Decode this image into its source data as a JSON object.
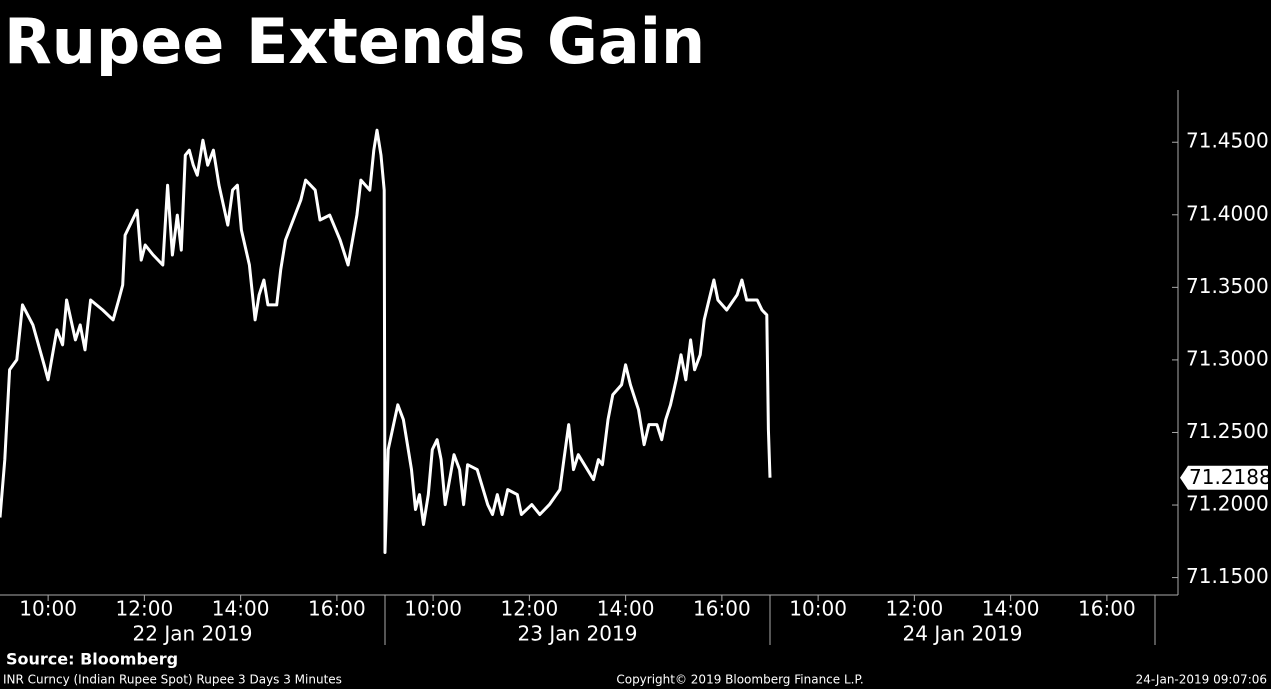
{
  "chart_data": {
    "type": "line",
    "title": "Rupee Extends Gain",
    "source": "Source: Bloomberg",
    "footnote": "INR Curncy (Indian Rupee Spot) Rupee 3 Days 3 Minutes",
    "copyright": "Copyright© 2019 Bloomberg Finance L.P.",
    "timestamp": "24-Jan-2019 09:07:06",
    "xlim": [
      "2019-01-22T09:00",
      "2019-01-24T17:00"
    ],
    "xticks": [
      {
        "value": "2019-01-22T10:00",
        "label": "10:00"
      },
      {
        "value": "2019-01-22T12:00",
        "label": "12:00"
      },
      {
        "value": "2019-01-22T14:00",
        "label": "14:00"
      },
      {
        "value": "2019-01-22T16:00",
        "label": "16:00"
      },
      {
        "value": "2019-01-23T10:00",
        "label": "10:00"
      },
      {
        "value": "2019-01-23T12:00",
        "label": "12:00"
      },
      {
        "value": "2019-01-23T14:00",
        "label": "14:00"
      },
      {
        "value": "2019-01-23T16:00",
        "label": "16:00"
      },
      {
        "value": "2019-01-24T10:00",
        "label": "10:00"
      },
      {
        "value": "2019-01-24T12:00",
        "label": "12:00"
      },
      {
        "value": "2019-01-24T14:00",
        "label": "14:00"
      },
      {
        "value": "2019-01-24T16:00",
        "label": "16:00"
      }
    ],
    "days": [
      {
        "value": "2019-01-22",
        "label": "22 Jan 2019"
      },
      {
        "value": "2019-01-23",
        "label": "23 Jan 2019"
      },
      {
        "value": "2019-01-24",
        "label": "24 Jan 2019"
      }
    ],
    "ylim": [
      71.138,
      71.486
    ],
    "yticks": [
      {
        "value": 71.15,
        "label": "71.1500"
      },
      {
        "value": 71.2,
        "label": "71.2000"
      },
      {
        "value": 71.25,
        "label": "71.2500"
      },
      {
        "value": 71.3,
        "label": "71.3000"
      },
      {
        "value": 71.35,
        "label": "71.3500"
      },
      {
        "value": 71.4,
        "label": "71.4000"
      },
      {
        "value": 71.45,
        "label": "71.4500"
      }
    ],
    "series": [
      {
        "color": "#ffffff",
        "x": [
          "2019-01-22T09:00",
          "2019-01-22T09:06",
          "2019-01-22T09:12",
          "2019-01-22T09:21",
          "2019-01-22T09:28",
          "2019-01-22T09:41",
          "2019-01-22T09:55",
          "2019-01-22T10:00",
          "2019-01-22T10:11",
          "2019-01-22T10:18",
          "2019-01-22T10:23",
          "2019-01-22T10:34",
          "2019-01-22T10:40",
          "2019-01-22T10:46",
          "2019-01-22T10:53",
          "2019-01-22T11:08",
          "2019-01-22T11:21",
          "2019-01-22T11:28",
          "2019-01-22T11:33",
          "2019-01-22T11:36",
          "2019-01-22T11:51",
          "2019-01-22T11:56",
          "2019-01-22T12:01",
          "2019-01-22T12:11",
          "2019-01-22T12:23",
          "2019-01-22T12:29",
          "2019-01-22T12:35",
          "2019-01-22T12:41",
          "2019-01-22T12:46",
          "2019-01-22T12:51",
          "2019-01-22T12:56",
          "2019-01-22T13:01",
          "2019-01-22T13:06",
          "2019-01-22T13:13",
          "2019-01-22T13:19",
          "2019-01-22T13:26",
          "2019-01-22T13:33",
          "2019-01-22T13:44",
          "2019-01-22T13:50",
          "2019-01-22T13:56",
          "2019-01-22T14:01",
          "2019-01-22T14:11",
          "2019-01-22T14:18",
          "2019-01-22T14:23",
          "2019-01-22T14:29",
          "2019-01-22T14:34",
          "2019-01-22T14:45",
          "2019-01-22T14:50",
          "2019-01-22T14:56",
          "2019-01-22T15:03",
          "2019-01-22T15:15",
          "2019-01-22T15:21",
          "2019-01-22T15:33",
          "2019-01-22T15:39",
          "2019-01-22T15:51",
          "2019-01-22T16:04",
          "2019-01-22T16:14",
          "2019-01-22T16:25",
          "2019-01-22T16:30",
          "2019-01-22T16:41",
          "2019-01-22T16:46",
          "2019-01-22T16:50",
          "2019-01-22T16:55",
          "2019-01-22T16:59",
          "2019-01-23T09:00",
          "2019-01-23T09:04",
          "2019-01-23T09:16",
          "2019-01-23T09:23",
          "2019-01-23T09:33",
          "2019-01-23T09:38",
          "2019-01-23T09:43",
          "2019-01-23T09:48",
          "2019-01-23T09:54",
          "2019-01-23T09:59",
          "2019-01-23T10:05",
          "2019-01-23T10:10",
          "2019-01-23T10:15",
          "2019-01-23T10:26",
          "2019-01-23T10:33",
          "2019-01-23T10:38",
          "2019-01-23T10:43",
          "2019-01-23T10:55",
          "2019-01-23T11:08",
          "2019-01-23T11:14",
          "2019-01-23T11:20",
          "2019-01-23T11:26",
          "2019-01-23T11:33",
          "2019-01-23T11:45",
          "2019-01-23T11:50",
          "2019-01-23T12:03",
          "2019-01-23T12:13",
          "2019-01-23T12:25",
          "2019-01-23T12:38",
          "2019-01-23T12:43",
          "2019-01-23T12:49",
          "2019-01-23T12:55",
          "2019-01-23T13:01",
          "2019-01-23T13:20",
          "2019-01-23T13:26",
          "2019-01-23T13:31",
          "2019-01-23T13:38",
          "2019-01-23T13:44",
          "2019-01-23T13:55",
          "2019-01-23T14:00",
          "2019-01-23T14:06",
          "2019-01-23T14:16",
          "2019-01-23T14:23",
          "2019-01-23T14:29",
          "2019-01-23T14:39",
          "2019-01-23T14:45",
          "2019-01-23T14:50",
          "2019-01-23T14:56",
          "2019-01-23T15:03",
          "2019-01-23T15:09",
          "2019-01-23T15:15",
          "2019-01-23T15:21",
          "2019-01-23T15:26",
          "2019-01-23T15:33",
          "2019-01-23T15:38",
          "2019-01-23T15:44",
          "2019-01-23T15:50",
          "2019-01-23T15:55",
          "2019-01-23T16:06",
          "2019-01-23T16:19",
          "2019-01-23T16:25",
          "2019-01-23T16:31",
          "2019-01-23T16:44",
          "2019-01-23T16:50",
          "2019-01-23T16:56",
          "2019-01-23T16:58",
          "2019-01-23T17:00"
        ],
        "values": [
          71.1914,
          71.2313,
          71.2932,
          71.3001,
          71.3379,
          71.3241,
          71.2966,
          71.2863,
          71.3207,
          71.3104,
          71.3413,
          71.3138,
          71.3241,
          71.3069,
          71.3413,
          71.3344,
          71.3276,
          71.3413,
          71.3516,
          71.386,
          71.4032,
          71.3688,
          71.3792,
          71.3723,
          71.3654,
          71.4204,
          71.3723,
          71.3998,
          71.3757,
          71.4411,
          71.4445,
          71.4342,
          71.4273,
          71.4514,
          71.4342,
          71.4445,
          71.4204,
          71.3929,
          71.417,
          71.4204,
          71.3895,
          71.3654,
          71.3276,
          71.3448,
          71.3551,
          71.3379,
          71.3379,
          71.362,
          71.3826,
          71.3929,
          71.4101,
          71.4239,
          71.417,
          71.3964,
          71.3998,
          71.3826,
          71.3654,
          71.3998,
          71.4239,
          71.417,
          71.4445,
          71.4583,
          71.4411,
          71.417,
          71.1673,
          71.2382,
          71.2691,
          71.2588,
          71.2244,
          71.1969,
          71.2072,
          71.1866,
          71.2072,
          71.2382,
          71.245,
          71.2313,
          71.2003,
          71.2347,
          71.2244,
          71.2003,
          71.2278,
          71.2244,
          71.2003,
          71.1935,
          71.2072,
          71.1935,
          71.2106,
          71.2072,
          71.1935,
          71.2003,
          71.1935,
          71.2003,
          71.2106,
          71.2313,
          71.2554,
          71.2244,
          71.2347,
          71.2175,
          71.2313,
          71.2278,
          71.2588,
          71.276,
          71.2829,
          71.2966,
          71.2829,
          71.2657,
          71.2416,
          71.2554,
          71.2554,
          71.245,
          71.2588,
          71.2691,
          71.2863,
          71.3035,
          71.2863,
          71.3138,
          71.2932,
          71.3035,
          71.3276,
          71.3413,
          71.3551,
          71.3413,
          71.3344,
          71.3448,
          71.3551,
          71.3413,
          71.3413,
          71.3344,
          71.331,
          71.2519,
          71.2188
        ]
      }
    ]
  }
}
